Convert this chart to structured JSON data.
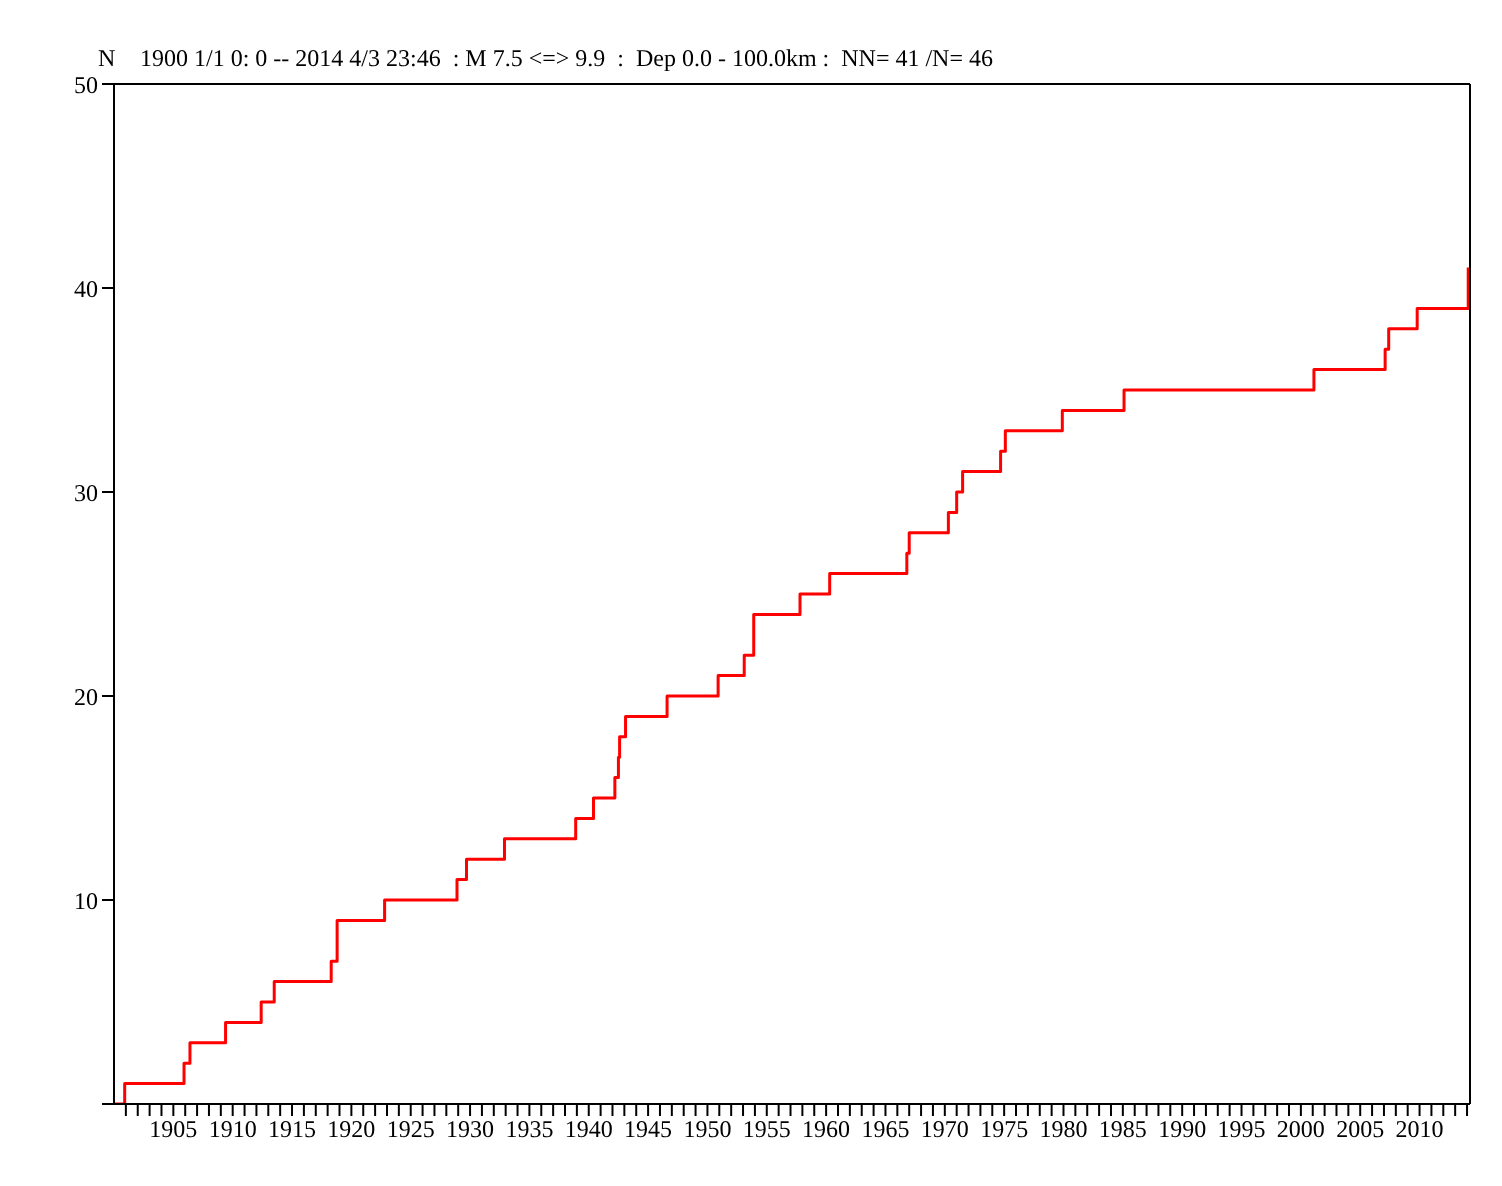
{
  "chart_data": {
    "type": "step",
    "title": "1900 1/1 0: 0 -- 2014 4/3 23:46  : M 7.5 <=> 9.9  :  Dep 0.0 - 100.0km :  NN= 41 /N= 46",
    "ylabel": "N",
    "x": [
      1900,
      1900.9,
      1905.9,
      1906.4,
      1909.4,
      1912.4,
      1913.5,
      1918.3,
      1918.8,
      1922.8,
      1928.9,
      1929.7,
      1932.9,
      1938.9,
      1940.4,
      1942.2,
      1942.5,
      1942.6,
      1943.1,
      1946.6,
      1950.9,
      1953.1,
      1953.9,
      1957.8,
      1960.3,
      1966.8,
      1967.0,
      1970.3,
      1971.0,
      1971.5,
      1974.7,
      1975.1,
      1979.9,
      1985.1,
      2001.1,
      2007.1,
      2007.4,
      2009.8,
      2014.1
    ],
    "series": [
      {
        "color": "#ff0000",
        "values": [
          0,
          1,
          2,
          3,
          4,
          5,
          6,
          7,
          9,
          10,
          11,
          12,
          13,
          14,
          15,
          16,
          17,
          18,
          19,
          20,
          21,
          22,
          24,
          25,
          26,
          27,
          28,
          29,
          30,
          31,
          32,
          33,
          34,
          35,
          36,
          37,
          38,
          39,
          41
        ]
      }
    ],
    "xlim": [
      1900,
      2014.25
    ],
    "ylim": [
      0,
      50
    ],
    "xticks": [
      {
        "value": 1901,
        "label": null
      },
      {
        "value": 1902,
        "label": null
      },
      {
        "value": 1903,
        "label": null
      },
      {
        "value": 1904,
        "label": null
      },
      1905,
      {
        "value": 1906,
        "label": null
      },
      {
        "value": 1907,
        "label": null
      },
      {
        "value": 1908,
        "label": null
      },
      {
        "value": 1909,
        "label": null
      },
      1910,
      {
        "value": 1911,
        "label": null
      },
      {
        "value": 1912,
        "label": null
      },
      {
        "value": 1913,
        "label": null
      },
      {
        "value": 1914,
        "label": null
      },
      1915,
      {
        "value": 1916,
        "label": null
      },
      {
        "value": 1917,
        "label": null
      },
      {
        "value": 1918,
        "label": null
      },
      {
        "value": 1919,
        "label": null
      },
      1920,
      {
        "value": 1921,
        "label": null
      },
      {
        "value": 1922,
        "label": null
      },
      {
        "value": 1923,
        "label": null
      },
      {
        "value": 1924,
        "label": null
      },
      1925,
      {
        "value": 1926,
        "label": null
      },
      {
        "value": 1927,
        "label": null
      },
      {
        "value": 1928,
        "label": null
      },
      {
        "value": 1929,
        "label": null
      },
      1930,
      {
        "value": 1931,
        "label": null
      },
      {
        "value": 1932,
        "label": null
      },
      {
        "value": 1933,
        "label": null
      },
      {
        "value": 1934,
        "label": null
      },
      1935,
      {
        "value": 1936,
        "label": null
      },
      {
        "value": 1937,
        "label": null
      },
      {
        "value": 1938,
        "label": null
      },
      {
        "value": 1939,
        "label": null
      },
      1940,
      {
        "value": 1941,
        "label": null
      },
      {
        "value": 1942,
        "label": null
      },
      {
        "value": 1943,
        "label": null
      },
      {
        "value": 1944,
        "label": null
      },
      1945,
      {
        "value": 1946,
        "label": null
      },
      {
        "value": 1947,
        "label": null
      },
      {
        "value": 1948,
        "label": null
      },
      {
        "value": 1949,
        "label": null
      },
      1950,
      {
        "value": 1951,
        "label": null
      },
      {
        "value": 1952,
        "label": null
      },
      {
        "value": 1953,
        "label": null
      },
      {
        "value": 1954,
        "label": null
      },
      1955,
      {
        "value": 1956,
        "label": null
      },
      {
        "value": 1957,
        "label": null
      },
      {
        "value": 1958,
        "label": null
      },
      {
        "value": 1959,
        "label": null
      },
      1960,
      {
        "value": 1961,
        "label": null
      },
      {
        "value": 1962,
        "label": null
      },
      {
        "value": 1963,
        "label": null
      },
      {
        "value": 1964,
        "label": null
      },
      1965,
      {
        "value": 1966,
        "label": null
      },
      {
        "value": 1967,
        "label": null
      },
      {
        "value": 1968,
        "label": null
      },
      {
        "value": 1969,
        "label": null
      },
      1970,
      {
        "value": 1971,
        "label": null
      },
      {
        "value": 1972,
        "label": null
      },
      {
        "value": 1973,
        "label": null
      },
      {
        "value": 1974,
        "label": null
      },
      1975,
      {
        "value": 1976,
        "label": null
      },
      {
        "value": 1977,
        "label": null
      },
      {
        "value": 1978,
        "label": null
      },
      {
        "value": 1979,
        "label": null
      },
      1980,
      {
        "value": 1981,
        "label": null
      },
      {
        "value": 1982,
        "label": null
      },
      {
        "value": 1983,
        "label": null
      },
      {
        "value": 1984,
        "label": null
      },
      1985,
      {
        "value": 1986,
        "label": null
      },
      {
        "value": 1987,
        "label": null
      },
      {
        "value": 1988,
        "label": null
      },
      {
        "value": 1989,
        "label": null
      },
      1990,
      {
        "value": 1991,
        "label": null
      },
      {
        "value": 1992,
        "label": null
      },
      {
        "value": 1993,
        "label": null
      },
      {
        "value": 1994,
        "label": null
      },
      1995,
      {
        "value": 1996,
        "label": null
      },
      {
        "value": 1997,
        "label": null
      },
      {
        "value": 1998,
        "label": null
      },
      {
        "value": 1999,
        "label": null
      },
      2000,
      {
        "value": 2001,
        "label": null
      },
      {
        "value": 2002,
        "label": null
      },
      {
        "value": 2003,
        "label": null
      },
      {
        "value": 2004,
        "label": null
      },
      2005,
      {
        "value": 2006,
        "label": null
      },
      {
        "value": 2007,
        "label": null
      },
      {
        "value": 2008,
        "label": null
      },
      {
        "value": 2009,
        "label": null
      },
      2010,
      {
        "value": 2011,
        "label": null
      },
      {
        "value": 2012,
        "label": null
      },
      {
        "value": 2013,
        "label": null
      },
      {
        "value": 2014,
        "label": null
      }
    ],
    "yticks": [
      {
        "value": 0,
        "label": null
      },
      10,
      20,
      30,
      40,
      50
    ],
    "grid": false,
    "marker": "none",
    "line_style": "solid"
  }
}
